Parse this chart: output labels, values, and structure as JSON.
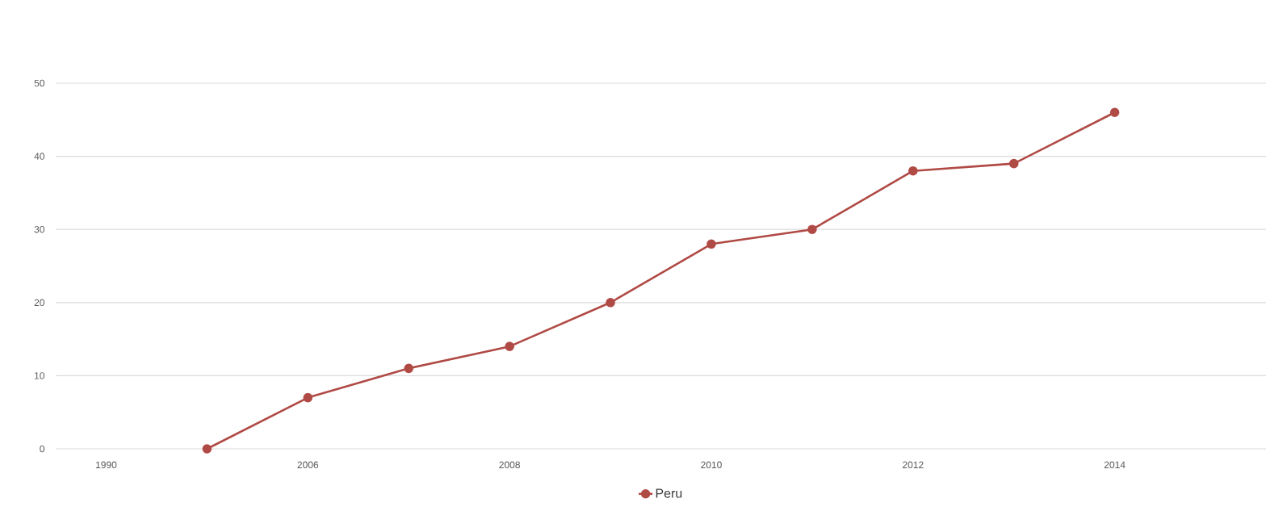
{
  "chart_data": {
    "type": "line",
    "categories": [
      "1990",
      null,
      "2006",
      null,
      "2008",
      null,
      "2010",
      null,
      "2012",
      null,
      "2014",
      null
    ],
    "series": [
      {
        "name": "Peru",
        "color": "#b04a45",
        "values": [
          null,
          0,
          7,
          11,
          14,
          20,
          28,
          30,
          38,
          39,
          46,
          null
        ]
      }
    ],
    "ylim": [
      0,
      50
    ],
    "yticks": [
      0,
      10,
      20,
      30,
      40,
      50
    ],
    "grid": "y",
    "legend": "bottom",
    "marker": "circle",
    "line_style": "solid"
  }
}
